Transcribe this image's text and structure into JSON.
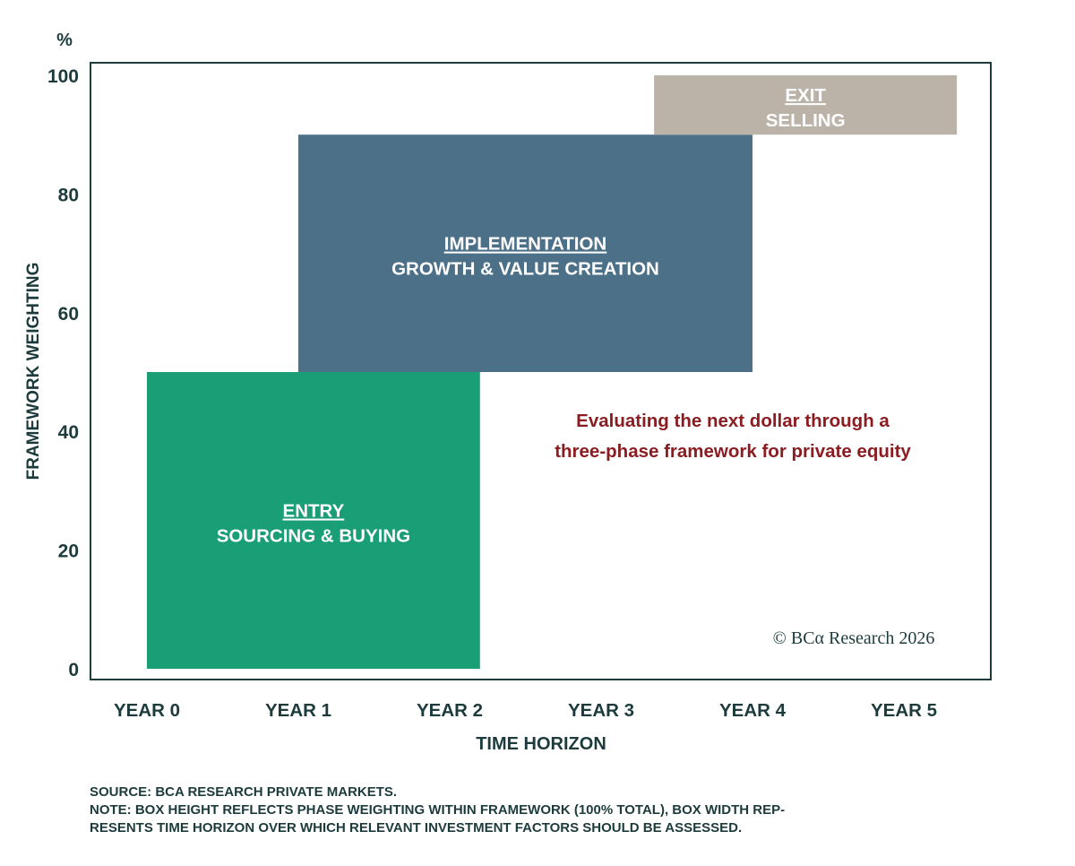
{
  "chart_data": {
    "type": "range-box",
    "ylabel_unit": "%",
    "ylabel": "FRAMEWORK WEIGHTING",
    "xlabel": "TIME HORIZON",
    "ylim": [
      0,
      100
    ],
    "y_ticks": [
      0,
      20,
      40,
      60,
      80,
      100
    ],
    "categories": [
      "YEAR 0",
      "YEAR 1",
      "YEAR 2",
      "YEAR 3",
      "YEAR 4",
      "YEAR 5"
    ],
    "boxes": [
      {
        "title": "ENTRY",
        "subtitle": "SOURCING & BUYING",
        "x_start": 0,
        "x_end": 2.2,
        "y_start": 0,
        "y_end": 50,
        "color": "#1a9e76"
      },
      {
        "title": "IMPLEMENTATION",
        "subtitle": "GROWTH & VALUE CREATION",
        "x_start": 1,
        "x_end": 4,
        "y_start": 50,
        "y_end": 90,
        "color": "#4c7088"
      },
      {
        "title": "EXIT",
        "subtitle": "SELLING",
        "x_start": 3.35,
        "x_end": 5.35,
        "y_start": 90,
        "y_end": 100,
        "color": "#bcb3a8"
      }
    ],
    "annotation": [
      "Evaluating the next dollar through a",
      "three-phase framework for private equity"
    ],
    "copyright": "© BCα Research 2026"
  },
  "footnotes": {
    "source": "SOURCE: BCA RESEARCH PRIVATE MARKETS.",
    "note_line1": "NOTE: BOX HEIGHT REFLECTS PHASE WEIGHTING WITHIN FRAMEWORK (100% TOTAL), BOX WIDTH REP-",
    "note_line2": "RESENTS TIME HORIZON OVER WHICH RELEVANT INVESTMENT FACTORS SHOULD BE ASSESSED."
  }
}
